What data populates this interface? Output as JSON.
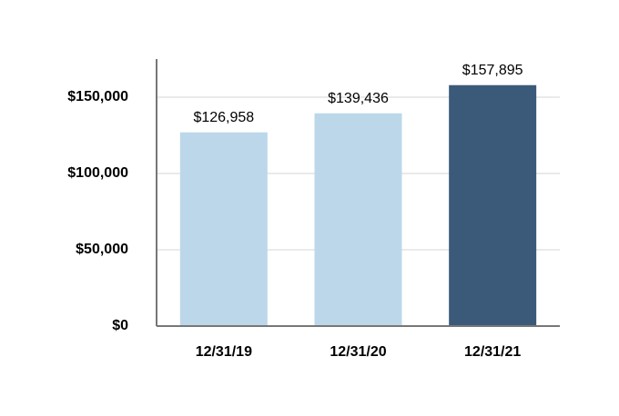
{
  "chart_data": {
    "type": "bar",
    "categories": [
      "12/31/19",
      "12/31/20",
      "12/31/21"
    ],
    "values": [
      126958,
      139436,
      157895
    ],
    "value_labels": [
      "$126,958",
      "$139,436",
      "$157,895"
    ],
    "colors": [
      "#bcd7ea",
      "#bcd7ea",
      "#3b5a7a"
    ],
    "ylim": [
      0,
      175000
    ],
    "yticks": [
      {
        "value": 0,
        "label": "$0"
      },
      {
        "value": 50000,
        "label": "$50,000"
      },
      {
        "value": 100000,
        "label": "$100,000"
      },
      {
        "value": 150000,
        "label": "$150,000"
      }
    ],
    "grid": true
  }
}
